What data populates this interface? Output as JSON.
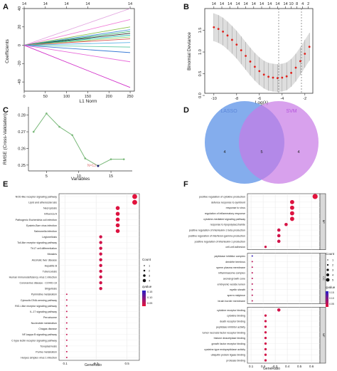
{
  "panels": {
    "A": {
      "label": "A",
      "xlabel": "L1 Norm",
      "ylabel": "Coefficients",
      "top_axis_ticks": [
        "14",
        "14",
        "14",
        "14",
        "14"
      ],
      "top_axis_positions": [
        0,
        50,
        100,
        150,
        250
      ],
      "chart_data": {
        "type": "line",
        "title": "",
        "xlabel": "L1 Norm",
        "ylabel": "Coefficients",
        "xlim": [
          0,
          260
        ],
        "ylim": [
          -50,
          40
        ],
        "xticks": [
          0,
          50,
          100,
          150,
          200,
          250
        ],
        "yticks": [
          -40,
          -20,
          0,
          20,
          40
        ],
        "series": [
          {
            "color": "#e3a8e0",
            "values": [
              [
                0,
                0
              ],
              [
                250,
                40
              ]
            ]
          },
          {
            "color": "#f17fd8",
            "values": [
              [
                0,
                0
              ],
              [
                250,
                28
              ]
            ]
          },
          {
            "color": "#8bc34a",
            "values": [
              [
                0,
                0
              ],
              [
                250,
                20
              ]
            ]
          },
          {
            "color": "#4a90d9",
            "values": [
              [
                0,
                0
              ],
              [
                250,
                17
              ]
            ]
          },
          {
            "color": "#3cb371",
            "values": [
              [
                0,
                0
              ],
              [
                250,
                15
              ]
            ]
          },
          {
            "color": "#222222",
            "values": [
              [
                0,
                0
              ],
              [
                250,
                13
              ]
            ]
          },
          {
            "color": "#2ec4b6",
            "values": [
              [
                0,
                0
              ],
              [
                250,
                11
              ]
            ]
          },
          {
            "color": "#9ad36a",
            "values": [
              [
                0,
                0
              ],
              [
                250,
                9
              ]
            ]
          },
          {
            "color": "#d9534f",
            "values": [
              [
                0,
                0
              ],
              [
                250,
                7
              ]
            ]
          },
          {
            "color": "#5ab4e6",
            "values": [
              [
                0,
                0
              ],
              [
                250,
                3
              ]
            ]
          },
          {
            "color": "#66cdaa",
            "values": [
              [
                0,
                0
              ],
              [
                250,
                -2
              ]
            ]
          },
          {
            "color": "#3a7bd5",
            "values": [
              [
                0,
                0
              ],
              [
                250,
                -8
              ]
            ]
          },
          {
            "color": "#e86bd9",
            "values": [
              [
                0,
                0
              ],
              [
                250,
                -18
              ]
            ]
          },
          {
            "color": "#d12fc9",
            "values": [
              [
                0,
                0
              ],
              [
                250,
                -46
              ]
            ]
          }
        ]
      }
    },
    "B": {
      "label": "B",
      "xlabel": "Log(λ)",
      "ylabel": "Binomial Deviance",
      "top_axis_ticks": [
        "14",
        "14",
        "14",
        "14",
        "14",
        "14",
        "14",
        "14",
        "14",
        "14",
        "10",
        "8",
        "4",
        "2"
      ],
      "top_axis_positions": [
        -10,
        -9.3,
        -8.6,
        -7.9,
        -7.2,
        -6.5,
        -5.8,
        -5.1,
        -4.4,
        -3.7,
        -3.2,
        -2.7,
        -2.2,
        -1.7
      ],
      "chart_data": {
        "type": "scatter",
        "title": "",
        "xlabel": "Log(λ)",
        "ylabel": "Binomial Deviance",
        "xlim": [
          -10.8,
          -1.3
        ],
        "ylim": [
          0.05,
          2.0
        ],
        "xticks": [
          -10,
          -8,
          -6,
          -4,
          -2
        ],
        "yticks": [
          0.0,
          0.5,
          1.0,
          1.5
        ],
        "vlines": [
          -4.3,
          -2.3
        ],
        "x": [
          -10.0,
          -9.6,
          -9.2,
          -8.8,
          -8.4,
          -8.0,
          -7.6,
          -7.2,
          -6.8,
          -6.4,
          -6.0,
          -5.6,
          -5.2,
          -4.8,
          -4.4,
          -4.0,
          -3.6,
          -3.2,
          -2.8,
          -2.4,
          -2.0,
          -1.6
        ],
        "y": [
          1.57,
          1.53,
          1.47,
          1.38,
          1.28,
          1.17,
          1.04,
          0.91,
          0.78,
          0.66,
          0.56,
          0.48,
          0.43,
          0.41,
          0.4,
          0.41,
          0.44,
          0.52,
          0.64,
          0.79,
          0.96,
          1.12
        ],
        "error_band": 0.32,
        "point_color": "#e0201b"
      }
    },
    "C": {
      "label": "C",
      "xlabel": "Variables",
      "ylabel": "RMSE (Cross-Validation)",
      "min_label": "N=13",
      "chart_data": {
        "type": "line",
        "title": "",
        "xlabel": "Variables",
        "ylabel": "RMSE (Cross-Validation)",
        "x": [
          3,
          5,
          7,
          9,
          11,
          13,
          15,
          17
        ],
        "y": [
          0.27,
          0.281,
          0.273,
          0.268,
          0.254,
          0.2495,
          0.2535,
          0.2535
        ],
        "min_point": {
          "x": 13,
          "y": 0.2495
        },
        "xlim": [
          2.2,
          18.3
        ],
        "ylim": [
          0.2465,
          0.285
        ],
        "xticks": [
          5,
          10,
          15
        ],
        "yticks": [
          0.25,
          0.26,
          0.27,
          0.28
        ],
        "line_color": "#7ab97a"
      }
    },
    "D": {
      "label": "D",
      "set_a": "LASSO",
      "set_b": "SVM",
      "only_a": "4",
      "both": "5",
      "only_b": "4",
      "chart_data": {
        "type": "venn",
        "sets": [
          {
            "name": "LASSO",
            "only": 4,
            "color": "#6f9fea"
          },
          {
            "name": "SVM",
            "only": 4,
            "color": "#c879e6"
          }
        ],
        "intersection": 5
      }
    },
    "E": {
      "label": "E",
      "xlabel": "GeneRatio",
      "legend": {
        "count_title": "Count",
        "count_values": [
          "1",
          "2",
          "3",
          "4"
        ],
        "color_title": "qvalue",
        "color_ticks": [
          "0.05",
          "0.10",
          "0.15"
        ]
      },
      "chart_data": {
        "type": "scatter",
        "title": "",
        "xlabel": "GeneRatio",
        "xlim": [
          0.06,
          0.58
        ],
        "xticks": [
          0.1,
          0.3,
          0.5
        ],
        "categories": [
          "NOD-like receptor signaling pathway",
          "Lipid and atherosclerosis",
          "Necroptosis",
          "Influenza A",
          "Pathogenic Escherichia coli infection",
          "Epstein-Barr virus infection",
          "Salmonella infection",
          "Legionellosis",
          "Toll-like receptor signaling pathway",
          "Th17 cell differentiation",
          "Measles",
          "Alcoholic liver disease",
          "Hepatitis B",
          "Tuberculosis",
          "Human immunodeficiency virus 1 infection",
          "Coronavirus disease - COVID-19",
          "Shigellosis",
          "Pyrimidine metabolism",
          "Cytosolic DNA-sensing pathway",
          "RIG-I-like receptor signaling pathway",
          "IL-17 signaling pathway",
          "Peroxisome",
          "Nucleotide metabolism",
          "Chagas disease",
          "NF-kappa B signaling pathway",
          "C-type lectin receptor signaling pathway",
          "Toxoplasmosis",
          "Purine metabolism",
          "Herpes simplex virus 1 infection"
        ],
        "gene_ratio": [
          0.55,
          0.55,
          0.44,
          0.44,
          0.44,
          0.44,
          0.44,
          0.33,
          0.33,
          0.33,
          0.33,
          0.33,
          0.33,
          0.33,
          0.33,
          0.33,
          0.33,
          0.11,
          0.11,
          0.11,
          0.11,
          0.11,
          0.11,
          0.11,
          0.11,
          0.11,
          0.11,
          0.11,
          0.11
        ],
        "count": [
          5,
          5,
          4,
          4,
          4,
          4,
          4,
          3,
          3,
          3,
          3,
          3,
          3,
          3,
          3,
          3,
          3,
          1,
          1,
          1,
          1,
          1,
          1,
          1,
          1,
          1,
          1,
          1,
          1
        ],
        "qvalue": [
          0.005,
          0.005,
          0.01,
          0.01,
          0.01,
          0.01,
          0.01,
          0.02,
          0.02,
          0.02,
          0.02,
          0.02,
          0.02,
          0.02,
          0.02,
          0.02,
          0.02,
          0.03,
          0.03,
          0.03,
          0.03,
          0.03,
          0.03,
          0.03,
          0.03,
          0.03,
          0.03,
          0.03,
          0.03
        ]
      }
    },
    "F": {
      "label": "F",
      "xlabel": "GeneRatio",
      "legend": {
        "count_title": "Count",
        "count_values": [
          "1",
          "2",
          "3",
          "4",
          "5"
        ],
        "color_title": "qvalue",
        "color_ticks": [
          "0.05",
          "0.10",
          "0.15"
        ]
      },
      "facets": [
        "BP",
        "CC",
        "MF"
      ],
      "chart_data": {
        "type": "scatter",
        "title": "",
        "xlabel": "GeneRatio",
        "xlim": [
          0.07,
          0.67
        ],
        "xticks": [
          0.1,
          0.2,
          0.3,
          0.4,
          0.5,
          0.6
        ],
        "categories": [
          "positive regulation of cytokine production",
          "defense response to symbiont",
          "response to virus",
          "regulation of inflammatory response",
          "cytokine-mediated signaling pathway",
          "response to lipopolysaccharide",
          "positive regulation of interleukin-1 beta production",
          "positive regulation of interferon-gamma production",
          "positive regulation of interleukin-1 production",
          "cell-cell adhesion",
          "peptidase inhibitor complex",
          "dendrite terminus",
          "sperm plasma membrane",
          "inflammasome complex",
          "axonal growth cone",
          "embryonic vesicle lumen",
          "myelin sheath",
          "sperm midpiece",
          "brush border membrane",
          "cytokine receptor binding",
          "cytokine binding",
          "death receptor binding",
          "peptidase inhibitor activity",
          "tumor necrosis factor receptor binding",
          "histone deacetylase binding",
          "growth factor receptor binding",
          "cysteine-type endopeptidase activity",
          "ubiquitin protein ligase binding",
          "protease binding"
        ],
        "facet": [
          "BP",
          "BP",
          "BP",
          "BP",
          "BP",
          "BP",
          "BP",
          "BP",
          "BP",
          "BP",
          "CC",
          "CC",
          "CC",
          "CC",
          "CC",
          "CC",
          "CC",
          "CC",
          "CC",
          "MF",
          "MF",
          "MF",
          "MF",
          "MF",
          "MF",
          "MF",
          "MF",
          "MF",
          "MF"
        ],
        "gene_ratio": [
          0.63,
          0.44,
          0.44,
          0.44,
          0.44,
          0.39,
          0.33,
          0.33,
          0.33,
          0.22,
          0.11,
          0.11,
          0.11,
          0.11,
          0.11,
          0.11,
          0.11,
          0.11,
          0.11,
          0.33,
          0.22,
          0.22,
          0.22,
          0.22,
          0.22,
          0.22,
          0.22,
          0.22,
          0.22
        ],
        "count": [
          5,
          4,
          4,
          4,
          4,
          3,
          3,
          3,
          3,
          2,
          1,
          1,
          1,
          1,
          1,
          1,
          1,
          1,
          1,
          3,
          2,
          2,
          2,
          2,
          2,
          2,
          2,
          2,
          2
        ],
        "qvalue": [
          0.005,
          0.01,
          0.01,
          0.01,
          0.01,
          0.015,
          0.02,
          0.02,
          0.02,
          0.02,
          0.16,
          0.04,
          0.04,
          0.04,
          0.04,
          0.04,
          0.04,
          0.04,
          0.04,
          0.02,
          0.02,
          0.02,
          0.02,
          0.02,
          0.02,
          0.02,
          0.02,
          0.02,
          0.02
        ]
      }
    }
  }
}
